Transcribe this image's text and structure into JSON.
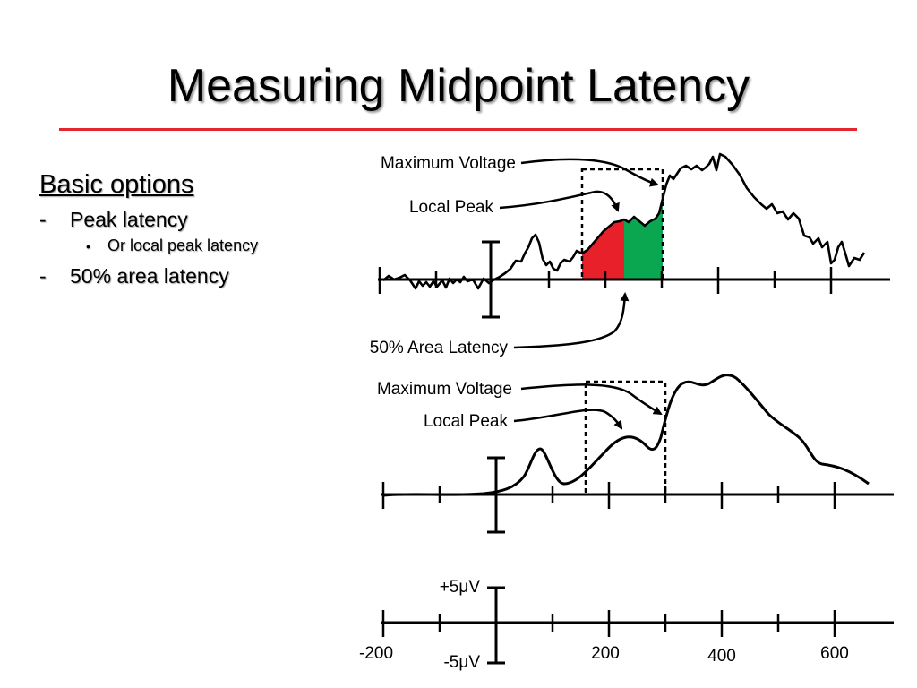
{
  "title": "Measuring Midpoint Latency",
  "outline": {
    "heading": "Basic options",
    "items": [
      {
        "marker": "-",
        "text": "Peak latency"
      },
      {
        "marker": "-",
        "text": "50% area latency"
      }
    ],
    "subitem": {
      "marker": "•",
      "text": "Or local peak latency"
    }
  },
  "figure": {
    "top_panel": {
      "labels": {
        "max_voltage": "Maximum Voltage",
        "local_peak": "Local Peak",
        "area_latency": "50% Area Latency"
      }
    },
    "middle_panel": {
      "labels": {
        "max_voltage": "Maximum Voltage",
        "local_peak": "Local Peak"
      }
    },
    "scale": {
      "y_top": "+5μV",
      "y_bottom": "-5μV",
      "x_labels": [
        "-200",
        "200",
        "400",
        "600"
      ]
    },
    "area_colors": {
      "first_half": "#e8202a",
      "second_half": "#0aa650"
    }
  }
}
